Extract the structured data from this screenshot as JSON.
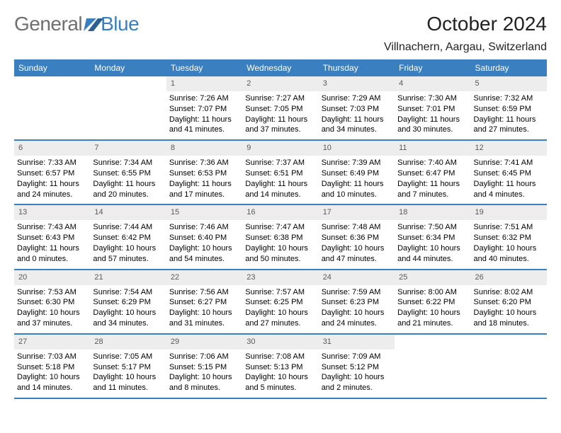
{
  "brand": {
    "general": "General",
    "blue": "Blue"
  },
  "title": "October 2024",
  "location": "Villnachern, Aargau, Switzerland",
  "colors": {
    "header_bg": "#3a7fc0",
    "header_text": "#ffffff",
    "daynum_bg": "#ededed",
    "daynum_text": "#5a5a5a",
    "row_border": "#3a7fc0",
    "logo_gray": "#6f6f6f",
    "logo_blue": "#3a7fc0"
  },
  "typography": {
    "title_fontsize": 28,
    "location_fontsize": 16,
    "header_fontsize": 12,
    "body_fontsize": 11,
    "font_family": "Arial"
  },
  "days_of_week": [
    "Sunday",
    "Monday",
    "Tuesday",
    "Wednesday",
    "Thursday",
    "Friday",
    "Saturday"
  ],
  "weeks": [
    [
      null,
      null,
      {
        "n": "1",
        "sunrise": "Sunrise: 7:26 AM",
        "sunset": "Sunset: 7:07 PM",
        "daylight": "Daylight: 11 hours and 41 minutes."
      },
      {
        "n": "2",
        "sunrise": "Sunrise: 7:27 AM",
        "sunset": "Sunset: 7:05 PM",
        "daylight": "Daylight: 11 hours and 37 minutes."
      },
      {
        "n": "3",
        "sunrise": "Sunrise: 7:29 AM",
        "sunset": "Sunset: 7:03 PM",
        "daylight": "Daylight: 11 hours and 34 minutes."
      },
      {
        "n": "4",
        "sunrise": "Sunrise: 7:30 AM",
        "sunset": "Sunset: 7:01 PM",
        "daylight": "Daylight: 11 hours and 30 minutes."
      },
      {
        "n": "5",
        "sunrise": "Sunrise: 7:32 AM",
        "sunset": "Sunset: 6:59 PM",
        "daylight": "Daylight: 11 hours and 27 minutes."
      }
    ],
    [
      {
        "n": "6",
        "sunrise": "Sunrise: 7:33 AM",
        "sunset": "Sunset: 6:57 PM",
        "daylight": "Daylight: 11 hours and 24 minutes."
      },
      {
        "n": "7",
        "sunrise": "Sunrise: 7:34 AM",
        "sunset": "Sunset: 6:55 PM",
        "daylight": "Daylight: 11 hours and 20 minutes."
      },
      {
        "n": "8",
        "sunrise": "Sunrise: 7:36 AM",
        "sunset": "Sunset: 6:53 PM",
        "daylight": "Daylight: 11 hours and 17 minutes."
      },
      {
        "n": "9",
        "sunrise": "Sunrise: 7:37 AM",
        "sunset": "Sunset: 6:51 PM",
        "daylight": "Daylight: 11 hours and 14 minutes."
      },
      {
        "n": "10",
        "sunrise": "Sunrise: 7:39 AM",
        "sunset": "Sunset: 6:49 PM",
        "daylight": "Daylight: 11 hours and 10 minutes."
      },
      {
        "n": "11",
        "sunrise": "Sunrise: 7:40 AM",
        "sunset": "Sunset: 6:47 PM",
        "daylight": "Daylight: 11 hours and 7 minutes."
      },
      {
        "n": "12",
        "sunrise": "Sunrise: 7:41 AM",
        "sunset": "Sunset: 6:45 PM",
        "daylight": "Daylight: 11 hours and 4 minutes."
      }
    ],
    [
      {
        "n": "13",
        "sunrise": "Sunrise: 7:43 AM",
        "sunset": "Sunset: 6:43 PM",
        "daylight": "Daylight: 11 hours and 0 minutes."
      },
      {
        "n": "14",
        "sunrise": "Sunrise: 7:44 AM",
        "sunset": "Sunset: 6:42 PM",
        "daylight": "Daylight: 10 hours and 57 minutes."
      },
      {
        "n": "15",
        "sunrise": "Sunrise: 7:46 AM",
        "sunset": "Sunset: 6:40 PM",
        "daylight": "Daylight: 10 hours and 54 minutes."
      },
      {
        "n": "16",
        "sunrise": "Sunrise: 7:47 AM",
        "sunset": "Sunset: 6:38 PM",
        "daylight": "Daylight: 10 hours and 50 minutes."
      },
      {
        "n": "17",
        "sunrise": "Sunrise: 7:48 AM",
        "sunset": "Sunset: 6:36 PM",
        "daylight": "Daylight: 10 hours and 47 minutes."
      },
      {
        "n": "18",
        "sunrise": "Sunrise: 7:50 AM",
        "sunset": "Sunset: 6:34 PM",
        "daylight": "Daylight: 10 hours and 44 minutes."
      },
      {
        "n": "19",
        "sunrise": "Sunrise: 7:51 AM",
        "sunset": "Sunset: 6:32 PM",
        "daylight": "Daylight: 10 hours and 40 minutes."
      }
    ],
    [
      {
        "n": "20",
        "sunrise": "Sunrise: 7:53 AM",
        "sunset": "Sunset: 6:30 PM",
        "daylight": "Daylight: 10 hours and 37 minutes."
      },
      {
        "n": "21",
        "sunrise": "Sunrise: 7:54 AM",
        "sunset": "Sunset: 6:29 PM",
        "daylight": "Daylight: 10 hours and 34 minutes."
      },
      {
        "n": "22",
        "sunrise": "Sunrise: 7:56 AM",
        "sunset": "Sunset: 6:27 PM",
        "daylight": "Daylight: 10 hours and 31 minutes."
      },
      {
        "n": "23",
        "sunrise": "Sunrise: 7:57 AM",
        "sunset": "Sunset: 6:25 PM",
        "daylight": "Daylight: 10 hours and 27 minutes."
      },
      {
        "n": "24",
        "sunrise": "Sunrise: 7:59 AM",
        "sunset": "Sunset: 6:23 PM",
        "daylight": "Daylight: 10 hours and 24 minutes."
      },
      {
        "n": "25",
        "sunrise": "Sunrise: 8:00 AM",
        "sunset": "Sunset: 6:22 PM",
        "daylight": "Daylight: 10 hours and 21 minutes."
      },
      {
        "n": "26",
        "sunrise": "Sunrise: 8:02 AM",
        "sunset": "Sunset: 6:20 PM",
        "daylight": "Daylight: 10 hours and 18 minutes."
      }
    ],
    [
      {
        "n": "27",
        "sunrise": "Sunrise: 7:03 AM",
        "sunset": "Sunset: 5:18 PM",
        "daylight": "Daylight: 10 hours and 14 minutes."
      },
      {
        "n": "28",
        "sunrise": "Sunrise: 7:05 AM",
        "sunset": "Sunset: 5:17 PM",
        "daylight": "Daylight: 10 hours and 11 minutes."
      },
      {
        "n": "29",
        "sunrise": "Sunrise: 7:06 AM",
        "sunset": "Sunset: 5:15 PM",
        "daylight": "Daylight: 10 hours and 8 minutes."
      },
      {
        "n": "30",
        "sunrise": "Sunrise: 7:08 AM",
        "sunset": "Sunset: 5:13 PM",
        "daylight": "Daylight: 10 hours and 5 minutes."
      },
      {
        "n": "31",
        "sunrise": "Sunrise: 7:09 AM",
        "sunset": "Sunset: 5:12 PM",
        "daylight": "Daylight: 10 hours and 2 minutes."
      },
      null,
      null
    ]
  ]
}
